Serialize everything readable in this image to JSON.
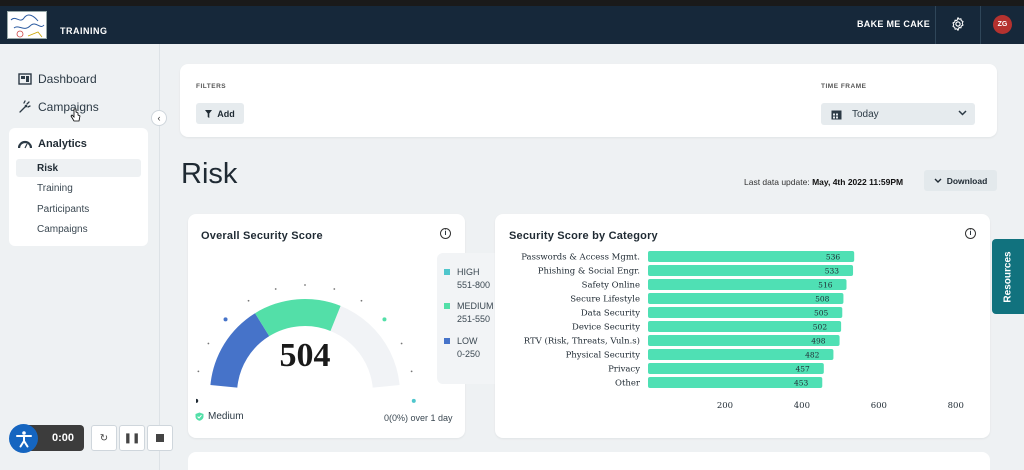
{
  "topbar": {
    "logo_text": "Bake Me Cake",
    "app_title": "TRAINING",
    "brand": "BAKE ME CAKE",
    "user_initials": "ZG"
  },
  "sidebar": {
    "items": [
      {
        "label": "Dashboard",
        "icon": "dashboard-icon"
      },
      {
        "label": "Campaigns",
        "icon": "campaigns-icon"
      }
    ],
    "analytics": {
      "label": "Analytics",
      "icon": "gauge-icon",
      "subitems": [
        "Risk",
        "Training",
        "Participants",
        "Campaigns"
      ],
      "active": "Risk"
    }
  },
  "filters": {
    "label": "FILTERS",
    "add_label": "Add",
    "timeframe_label": "TIME FRAME",
    "timeframe_value": "Today"
  },
  "page": {
    "title": "Risk",
    "last_update_label": "Last data update:",
    "last_update_value": "May, 4th 2022 11:59PM",
    "download_label": "Download"
  },
  "overall": {
    "title": "Overall Security Score",
    "score": "504",
    "score_value": 504,
    "score_max": 800,
    "level": "Medium",
    "change": "0(0%) over 1 day",
    "legend": [
      {
        "name": "HIGH",
        "range": "551-800",
        "color": "#4fc6cc"
      },
      {
        "name": "MEDIUM",
        "range": "251-550",
        "color": "#53dfa8"
      },
      {
        "name": "LOW",
        "range": "0-250",
        "color": "#4673c9"
      }
    ]
  },
  "chart_data": {
    "type": "bar",
    "orientation": "horizontal",
    "title": "Security Score by Category",
    "categories": [
      "Passwords & Access Mgmt.",
      "Phishing & Social Engr.",
      "Safety Online",
      "Secure Lifestyle",
      "Data Security",
      "Device Security",
      "RTV (Risk, Threats, Vuln.s)",
      "Physical Security",
      "Privacy",
      "Other"
    ],
    "values": [
      536,
      533,
      516,
      508,
      505,
      502,
      498,
      482,
      457,
      453
    ],
    "xlim": [
      0,
      850
    ],
    "xticks": [
      "200",
      "400",
      "600",
      "800"
    ],
    "bar_color": "#4fe0b4"
  },
  "resources_label": "Resources",
  "player": {
    "time": "0:00"
  }
}
